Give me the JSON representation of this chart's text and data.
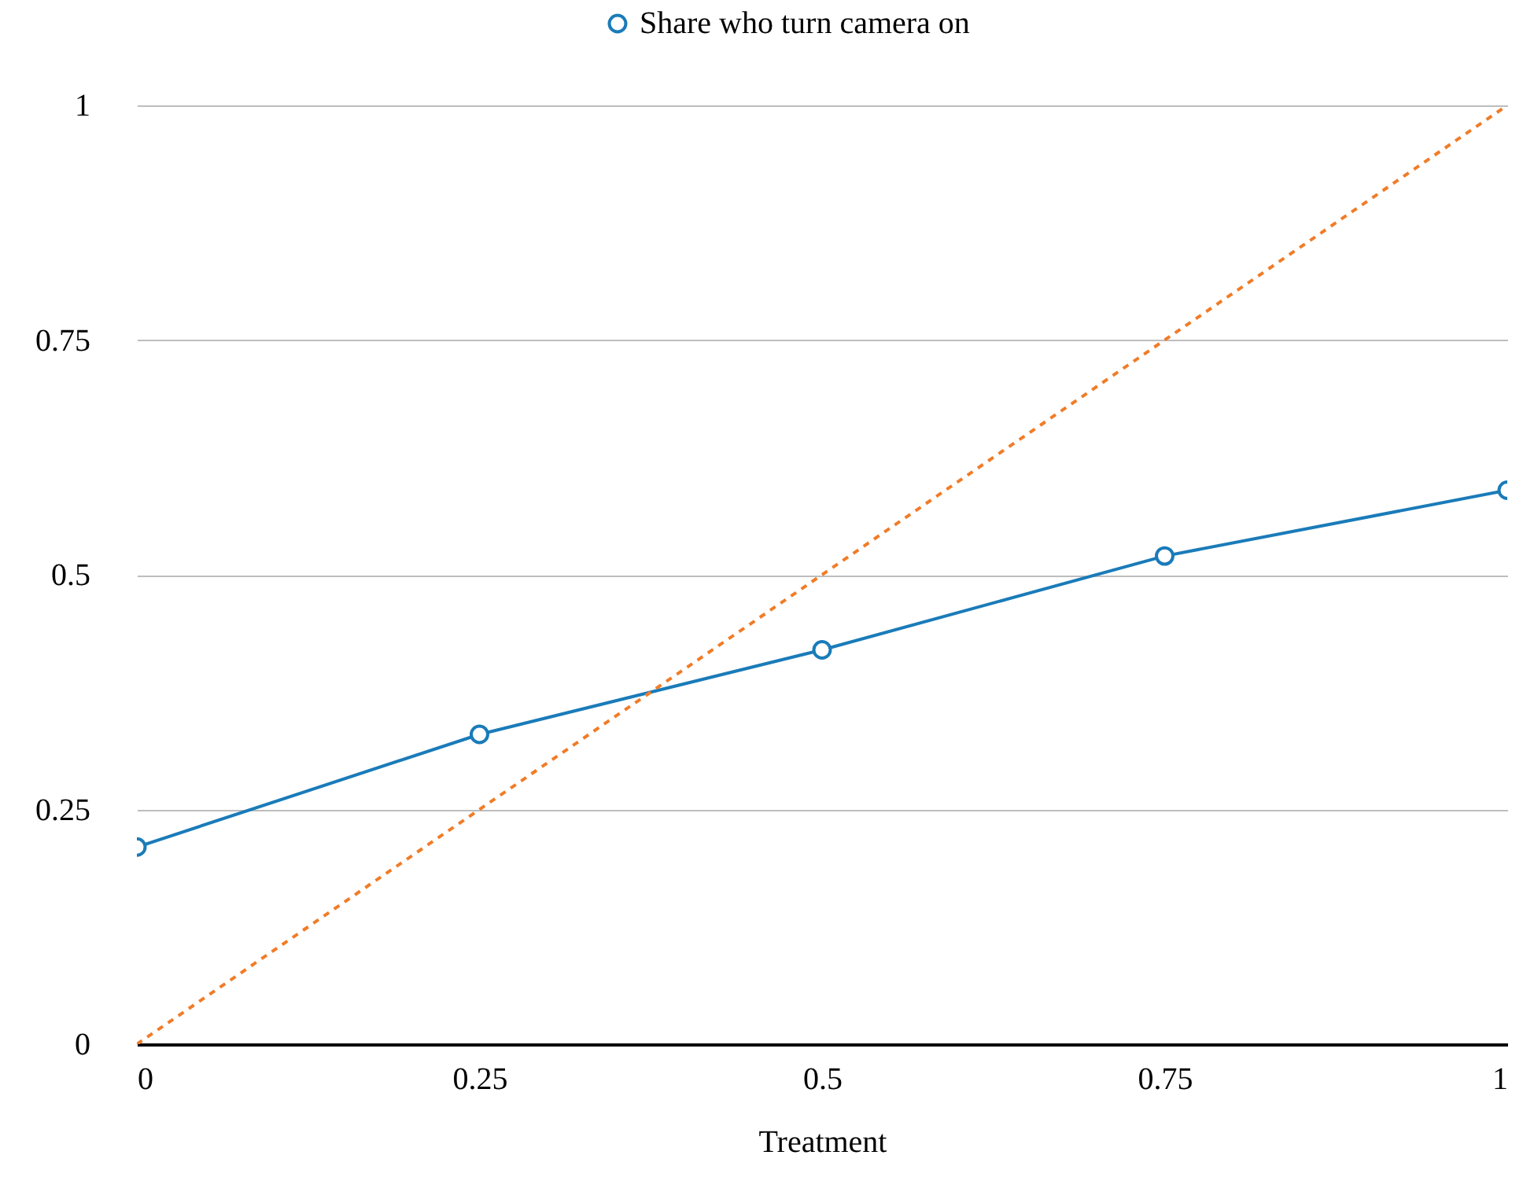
{
  "chart_data": {
    "type": "line",
    "xlabel": "Treatment",
    "x": [
      0,
      0.25,
      0.5,
      0.75,
      1
    ],
    "series": [
      {
        "name": "Share who turn camera on",
        "color": "#1a7bb9",
        "values": [
          0.21,
          0.33,
          0.42,
          0.52,
          0.59
        ],
        "marker": "circle",
        "line_style": "solid"
      },
      {
        "color": "#f07c28",
        "x": [
          0,
          1
        ],
        "values": [
          0,
          1
        ],
        "marker": "none",
        "line_style": "dashed"
      }
    ],
    "xlim": [
      0,
      1
    ],
    "xticks": [
      0,
      0.25,
      0.5,
      0.75,
      1
    ],
    "ylim": [
      0,
      1
    ],
    "yticks": [
      0,
      0.25,
      0.5,
      0.75,
      1
    ],
    "grid": "y",
    "legend": "top"
  }
}
